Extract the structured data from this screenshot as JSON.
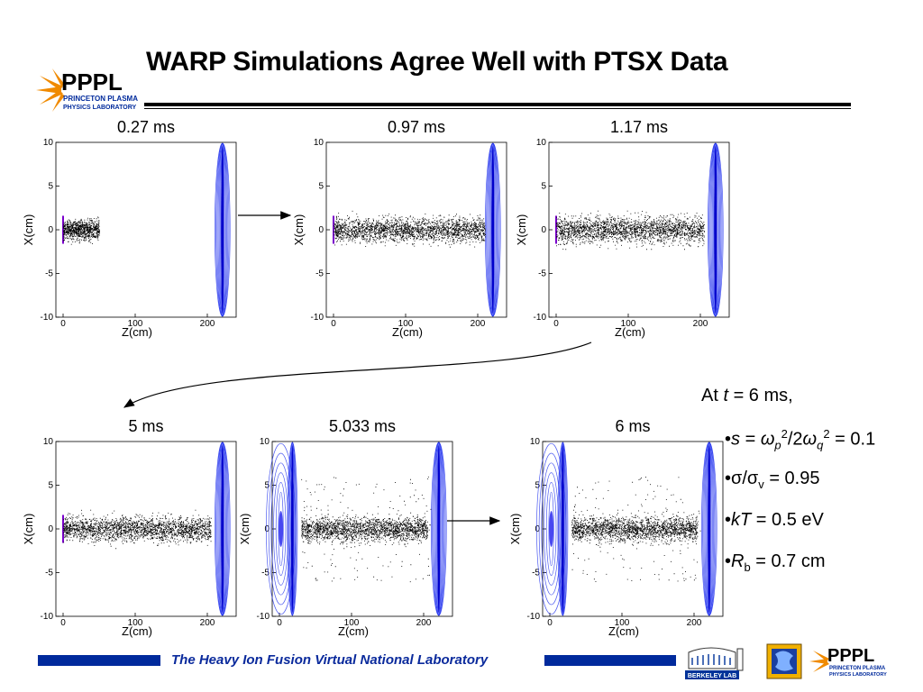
{
  "title": "WARP Simulations Agree Well with PTSX Data",
  "logo": {
    "main": "PPPL",
    "sub1": "PRINCETON PLASMA",
    "sub2": "PHYSICS LABORATORY"
  },
  "chart_data": [
    {
      "type": "scatter",
      "title": "0.27 ms",
      "xlabel": "Z(cm)",
      "ylabel": "X(cm)",
      "xlim": [
        -10,
        240
      ],
      "ylim": [
        -10,
        10
      ],
      "xticks": [
        0,
        100,
        200
      ],
      "yticks": [
        10,
        5,
        0,
        -5,
        -10
      ],
      "beam": {
        "z_start": 0,
        "z_end": 50,
        "width": 1.0
      },
      "source_lens": false
    },
    {
      "type": "scatter",
      "title": "0.97 ms",
      "xlabel": "Z(cm)",
      "ylabel": "X(cm)",
      "xlim": [
        -10,
        240
      ],
      "ylim": [
        -10,
        10
      ],
      "xticks": [
        0,
        100,
        200
      ],
      "yticks": [
        10,
        5,
        0,
        -5,
        -10
      ],
      "beam": {
        "z_start": 0,
        "z_end": 210,
        "width": 1.2
      },
      "source_lens": false
    },
    {
      "type": "scatter",
      "title": "1.17 ms",
      "xlabel": "Z(cm)",
      "ylabel": "X(cm)",
      "xlim": [
        -10,
        240
      ],
      "ylim": [
        -10,
        10
      ],
      "xticks": [
        0,
        100,
        200
      ],
      "yticks": [
        10,
        5,
        0,
        -5,
        -10
      ],
      "beam": {
        "z_start": 0,
        "z_end": 205,
        "width": 1.3
      },
      "source_lens": false
    },
    {
      "type": "scatter",
      "title": "5 ms",
      "xlabel": "Z(cm)",
      "ylabel": "X(cm)",
      "xlim": [
        -10,
        240
      ],
      "ylim": [
        -10,
        10
      ],
      "xticks": [
        0,
        100,
        200
      ],
      "yticks": [
        10,
        5,
        0,
        -5,
        -10
      ],
      "beam": {
        "z_start": 0,
        "z_end": 205,
        "width": 1.2
      },
      "source_lens": false
    },
    {
      "type": "scatter",
      "title": "5.033 ms",
      "xlabel": "Z(cm)",
      "ylabel": "X(cm)",
      "xlim": [
        -10,
        240
      ],
      "ylim": [
        -10,
        10
      ],
      "xticks": [
        0,
        100,
        200
      ],
      "yticks": [
        10,
        5,
        0,
        -5,
        -10
      ],
      "beam": {
        "z_start": 30,
        "z_end": 205,
        "width": 1.2
      },
      "source_lens": true
    },
    {
      "type": "scatter",
      "title": "6 ms",
      "xlabel": "Z(cm)",
      "ylabel": "X(cm)",
      "xlim": [
        -10,
        240
      ],
      "ylim": [
        -10,
        10
      ],
      "xticks": [
        0,
        100,
        200
      ],
      "yticks": [
        10,
        5,
        0,
        -5,
        -10
      ],
      "beam": {
        "z_start": 30,
        "z_end": 205,
        "width": 1.2
      },
      "source_lens": true
    }
  ],
  "notes": {
    "header_pre": "At ",
    "header_t": "t",
    "header_post": " = 6 ms,",
    "s_label": "s",
    "s_eq": " = ",
    "s_expr_a": "ω",
    "s_sub_a": "p",
    "s_sup_a": "2",
    "s_div": "/2",
    "s_expr_b": "ω",
    "s_sub_b": "q",
    "s_sup_b": "2",
    "s_val": " = 0.1",
    "sigma_a": "σ/σ",
    "sigma_sub": "v",
    "sigma_val": " = 0.95",
    "kt_label": "kT",
    "kt_val": " = 0.5 eV",
    "rb_label": "R",
    "rb_sub": "b",
    "rb_val": " = 0.7 cm",
    "bullet": "•"
  },
  "footer": {
    "text": "The Heavy Ion Fusion Virtual National Laboratory",
    "berkeley": "BERKELEY LAB",
    "ppplSmall": "PPPL",
    "sub1": "PRINCETON PLASMA",
    "sub2": "PHYSICS LABORATORY"
  },
  "colors": {
    "accent_blue": "#002a9c",
    "contour_blue": "#2233ee",
    "logo_orange": "#f08a00"
  }
}
